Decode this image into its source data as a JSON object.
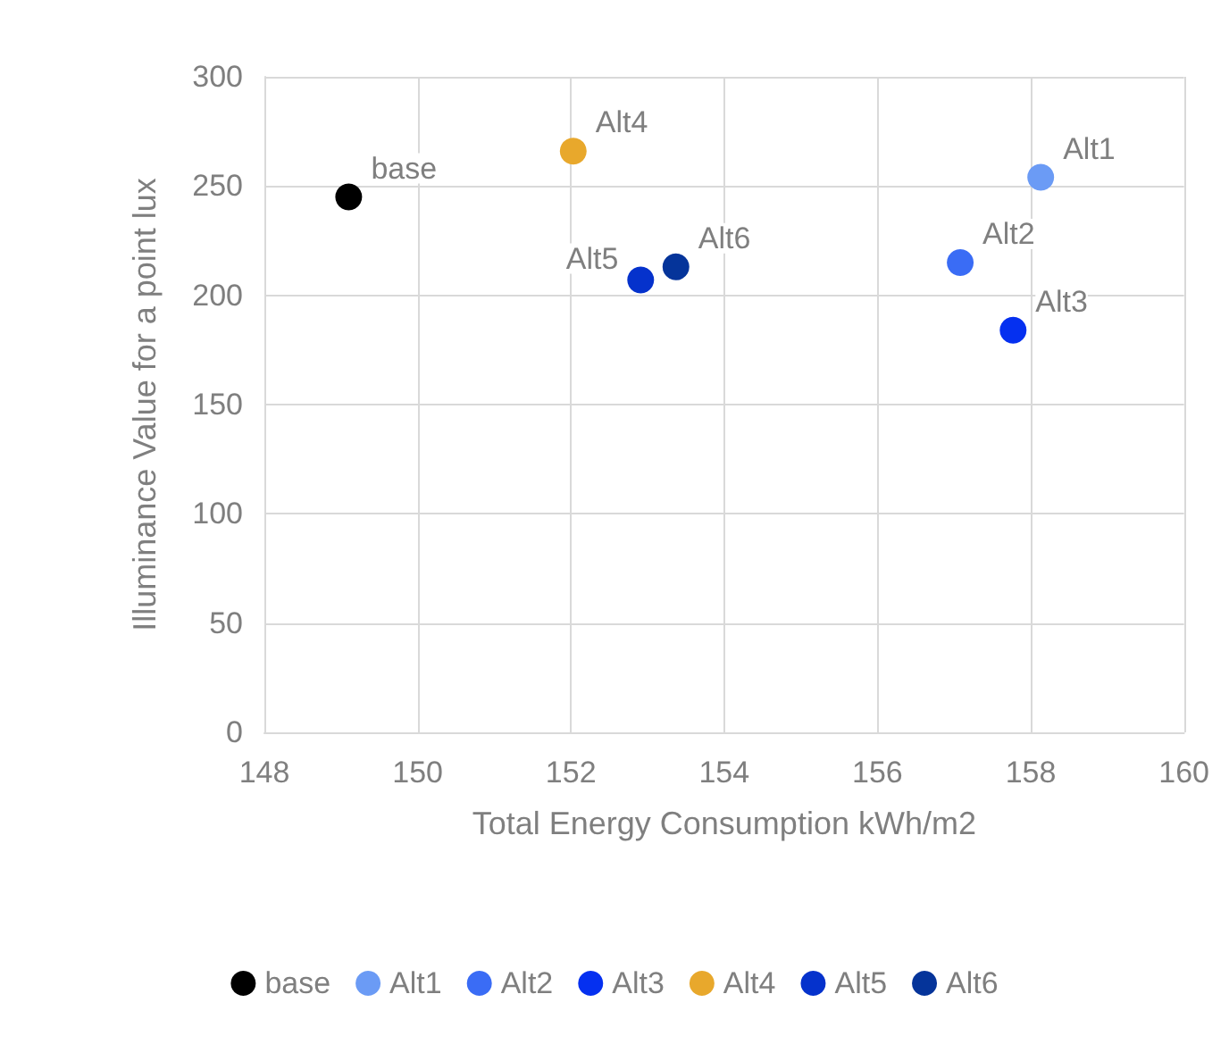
{
  "chart_data": {
    "type": "scatter",
    "xlabel": "Total Energy Consumption kWh/m2",
    "ylabel": "Illuminance Value for a point lux",
    "xlim": [
      148,
      160
    ],
    "xticks": [
      148,
      150,
      152,
      154,
      156,
      158,
      160
    ],
    "ylim": [
      0,
      300
    ],
    "yticks": [
      0,
      50,
      100,
      150,
      200,
      250,
      300
    ],
    "grid": true,
    "legend": "bottom",
    "marker": "circle",
    "series": [
      {
        "name": "base",
        "color": "#000000",
        "x": [
          149.1
        ],
        "values": [
          245
        ]
      },
      {
        "name": "Alt1",
        "color": "#6b9bf5",
        "x": [
          158.13
        ],
        "values": [
          254
        ]
      },
      {
        "name": "Alt2",
        "color": "#3a6cf5",
        "x": [
          157.08
        ],
        "values": [
          215
        ]
      },
      {
        "name": "Alt3",
        "color": "#0530f0",
        "x": [
          157.77
        ],
        "values": [
          184
        ]
      },
      {
        "name": "Alt4",
        "color": "#e8a82c",
        "x": [
          152.03
        ],
        "values": [
          266
        ]
      },
      {
        "name": "Alt5",
        "color": "#0532cc",
        "x": [
          152.91
        ],
        "values": [
          207
        ]
      },
      {
        "name": "Alt6",
        "color": "#05349a",
        "x": [
          153.37
        ],
        "values": [
          213
        ]
      }
    ]
  }
}
